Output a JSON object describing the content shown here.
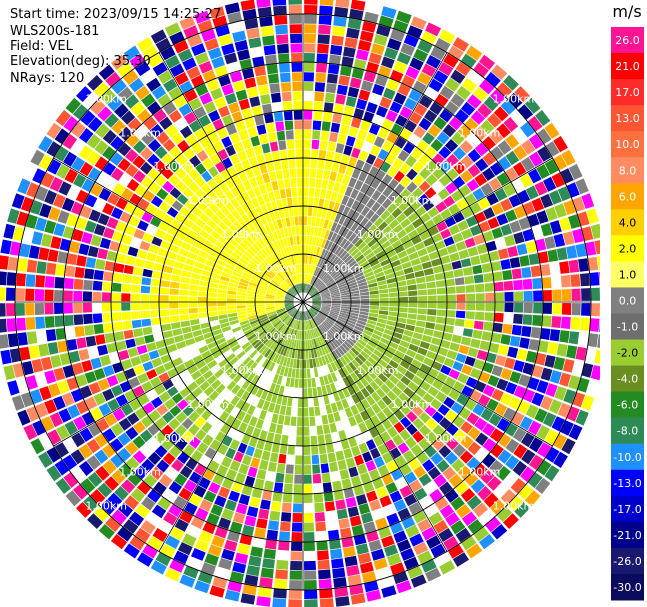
{
  "header": {
    "start_time": "Start time: 2023/09/15 14:25:27",
    "instrument": "WLS200s-181",
    "field": "Field: VEL",
    "elevation": "Elevation(deg): 35.30",
    "nrays": "NRays: 120"
  },
  "chart_data": {
    "type": "heatmap",
    "projection": "polar (PPI scan)",
    "field": "VEL",
    "nrays": 120,
    "range_ring_label": "1.00km",
    "colorbar": {
      "unit": "m/s",
      "ticks": [
        "26.0",
        "21.0",
        "17.0",
        "13.0",
        "10.0",
        "8.0",
        "6.0",
        "4.0",
        "2.0",
        "1.0",
        "0.0",
        "-1.0",
        "-2.0",
        "-4.0",
        "-6.0",
        "-8.0",
        "-10.0",
        "-13.0",
        "-17.0",
        "-21.0",
        "-26.0",
        "-30.0"
      ],
      "colors": [
        "#ff1493",
        "#ff0000",
        "#ff2a2a",
        "#ff5533",
        "#ff7040",
        "#ff8c60",
        "#ffa500",
        "#ffd000",
        "#ffff00",
        "#ffff66",
        "#808080",
        "#6e6e6e",
        "#9acd32",
        "#6b8e23",
        "#228b22",
        "#2e8b57",
        "#1e90ff",
        "#0000ff",
        "#0000cd",
        "#00008b",
        "#191970",
        "#0b0b5e"
      ]
    }
  }
}
